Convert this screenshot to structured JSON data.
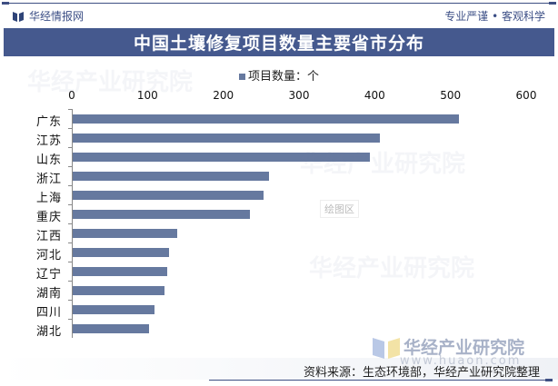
{
  "header": {
    "brand": "华经情报网",
    "slogan": "专业严谨 • 客观科学",
    "title": "中国土壤修复项目数量主要省市分布"
  },
  "legend": {
    "label": "项目数量：个",
    "color": "#66799f"
  },
  "tooltip": "绘图区",
  "watermark": {
    "name": "华经产业研究院",
    "url": "www.huaon.com"
  },
  "source": "资料来源：生态环境部，华经产业研究院整理",
  "colors": {
    "title_bar": "#45598e",
    "bar": "#66799f",
    "brand": "#3b4e85"
  },
  "chart_data": {
    "type": "bar",
    "orientation": "horizontal",
    "title": "中国土壤修复项目数量主要省市分布",
    "xlabel": "",
    "ylabel": "",
    "xlim": [
      0,
      600
    ],
    "x_ticks": [
      "0",
      "100",
      "200",
      "300",
      "400",
      "500",
      "600"
    ],
    "x_axis_position": "top",
    "grid": false,
    "legend_position": "top",
    "categories": [
      "广东",
      "江苏",
      "山东",
      "浙江",
      "上海",
      "重庆",
      "江西",
      "河北",
      "辽宁",
      "湖南",
      "四川",
      "湖北"
    ],
    "series": [
      {
        "name": "项目数量：个",
        "values": [
          510,
          406,
          392,
          259,
          252,
          234,
          138,
          127,
          125,
          121,
          108,
          101
        ]
      }
    ]
  }
}
